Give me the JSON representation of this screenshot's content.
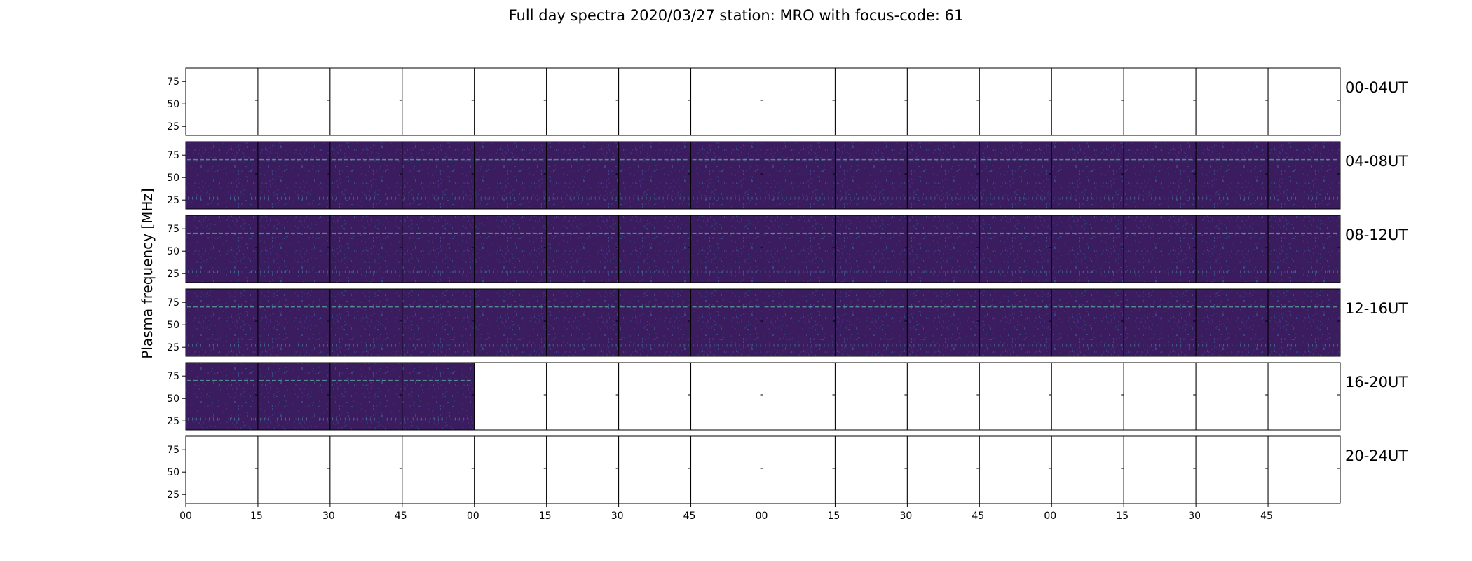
{
  "chart_data": {
    "type": "heatmap",
    "title": "Full day spectra 2020/03/27 station: MRO with focus-code: 61",
    "ylabel": "Plasma frequency [MHz]",
    "yticks": [
      25,
      50,
      75
    ],
    "ylim": [
      15,
      90
    ],
    "xticks_minutes": [
      "00",
      "15",
      "30",
      "45",
      "00",
      "15",
      "30",
      "45",
      "00",
      "15",
      "30",
      "45",
      "00",
      "15",
      "30",
      "45"
    ],
    "colormap": "viridis",
    "panels_per_row": 16,
    "rows": [
      {
        "label": "00-04UT",
        "filled_panels": 0
      },
      {
        "label": "04-08UT",
        "filled_panels": 16
      },
      {
        "label": "08-12UT",
        "filled_panels": 16
      },
      {
        "label": "12-16UT",
        "filled_panels": 16
      },
      {
        "label": "16-20UT",
        "filled_panels": 4
      },
      {
        "label": "20-24UT",
        "filled_panels": 0
      }
    ]
  }
}
